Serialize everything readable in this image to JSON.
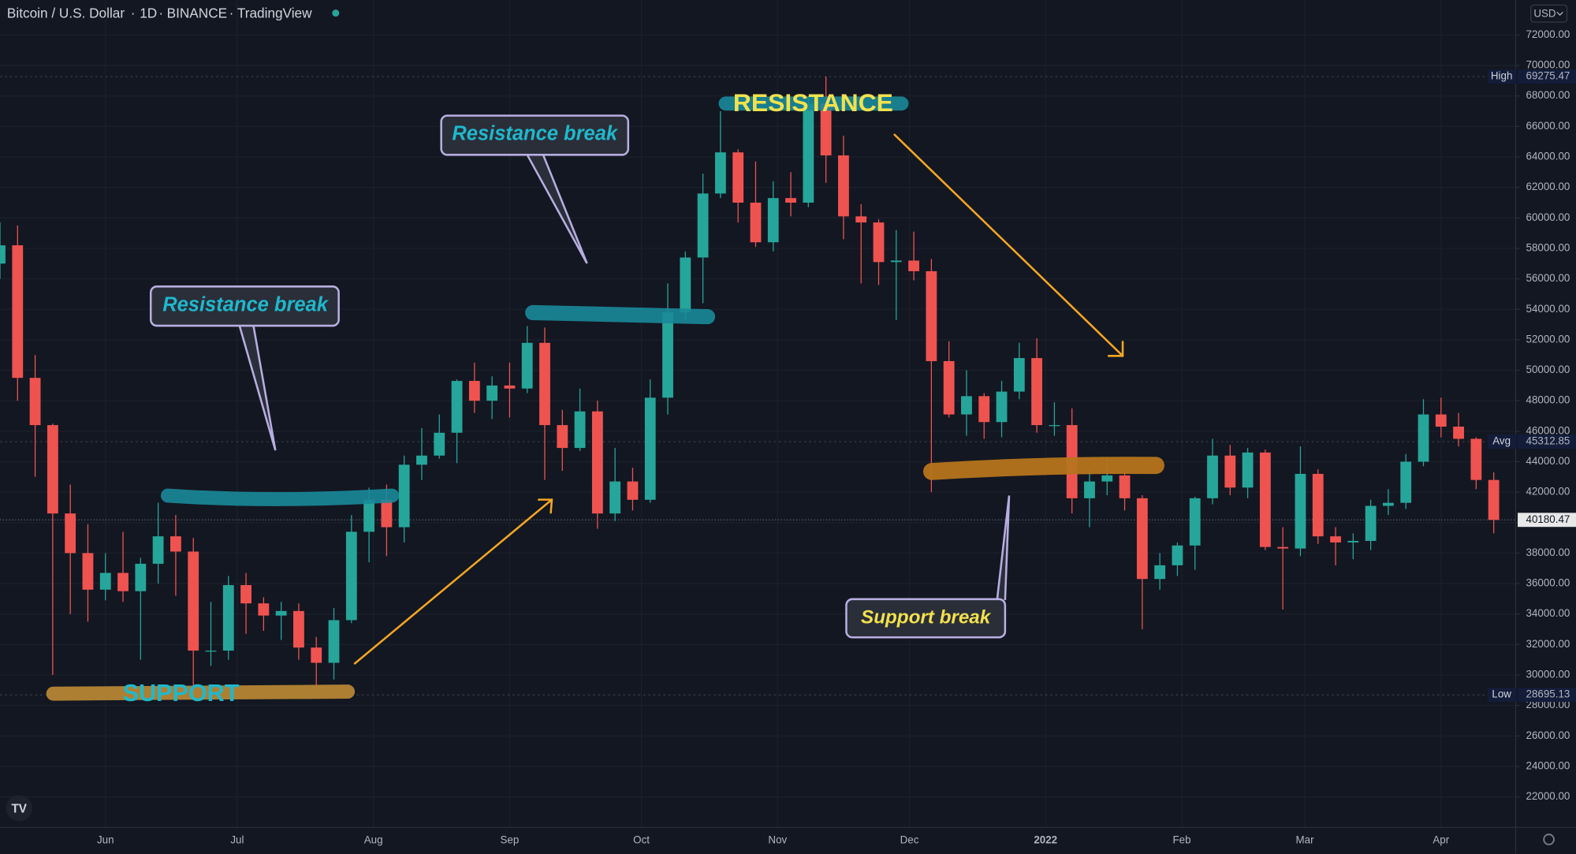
{
  "chart_data": {
    "type": "candlestick",
    "header": [
      "Bitcoin / U.S. Dollar",
      "1D",
      "BINANCE",
      "TradingView"
    ],
    "currency": "USD",
    "up_color": "#26a69a",
    "down_color": "#ef5350",
    "grid": true,
    "x": [
      0,
      4,
      8,
      12,
      16,
      20,
      24,
      28,
      32,
      36,
      40,
      44,
      48,
      52,
      56,
      60,
      64,
      68,
      72,
      76,
      80,
      84,
      88,
      92,
      96,
      100,
      104,
      108,
      112,
      116,
      120,
      124,
      128,
      132,
      136,
      140,
      144,
      148,
      152,
      156,
      160,
      164,
      168,
      172,
      176,
      180,
      184,
      188,
      192,
      196,
      200,
      204,
      208,
      212,
      216,
      220,
      224,
      228,
      232,
      236,
      240,
      244,
      248,
      252,
      256,
      260,
      264,
      268,
      272,
      276,
      280,
      284,
      288,
      292,
      296,
      300,
      304,
      308,
      312,
      316,
      320,
      324,
      328,
      332,
      336,
      340
    ],
    "open": [
      57000,
      58200,
      49500,
      46400,
      40600,
      38000,
      35600,
      36700,
      35500,
      37300,
      39100,
      38100,
      31600,
      31600,
      35900,
      34700,
      33900,
      34200,
      31800,
      30800,
      33600,
      39400,
      41500,
      39700,
      43800,
      44400,
      45900,
      49300,
      48000,
      49000,
      48800,
      51800,
      46400,
      44900,
      47300,
      40600,
      42700,
      41500,
      48200,
      53800,
      57400,
      61600,
      64300,
      61000,
      58400,
      61300,
      61000,
      67500,
      64100,
      60100,
      59700,
      57100,
      57200,
      56500,
      50600,
      47100,
      48300,
      46600,
      48600,
      50800,
      46400,
      46400,
      41600,
      42700,
      43100,
      41600,
      36300,
      37200,
      38500,
      41600,
      44400,
      42300,
      44600,
      38400,
      38300,
      43200,
      39100,
      38700,
      38800,
      41100,
      41300,
      44000,
      47100,
      46300,
      45500,
      42800
    ],
    "high": [
      59700,
      59500,
      51000,
      46500,
      42500,
      39900,
      38000,
      39400,
      37700,
      41300,
      40500,
      39000,
      34800,
      36500,
      36700,
      35100,
      34800,
      34700,
      32500,
      34400,
      40500,
      42300,
      42500,
      44400,
      46200,
      47100,
      49400,
      50500,
      49600,
      50500,
      52900,
      52800,
      47400,
      48800,
      48000,
      44900,
      43600,
      49400,
      55700,
      57800,
      62900,
      67000,
      64500,
      63700,
      62400,
      63000,
      68000,
      69275,
      65400,
      60900,
      59900,
      59200,
      59100,
      57300,
      51900,
      50000,
      48500,
      49300,
      51800,
      52100,
      47900,
      47500,
      43500,
      44300,
      43400,
      41800,
      38000,
      38700,
      41700,
      45500,
      45100,
      44900,
      44800,
      39700,
      45000,
      43500,
      39700,
      39300,
      41500,
      42200,
      44500,
      48100,
      48200,
      47200,
      45600,
      43300
    ],
    "low": [
      56000,
      48000,
      43000,
      30000,
      34000,
      33500,
      34900,
      34800,
      31000,
      36000,
      35200,
      28700,
      30600,
      31000,
      32700,
      32900,
      32300,
      31000,
      29300,
      29700,
      33400,
      37400,
      37800,
      38700,
      42800,
      44200,
      43900,
      47200,
      46800,
      46900,
      48500,
      42800,
      43400,
      44700,
      39600,
      40100,
      40800,
      41300,
      47100,
      53300,
      54400,
      61300,
      59700,
      58100,
      57800,
      60100,
      60700,
      62300,
      58600,
      55700,
      55600,
      53300,
      55900,
      42000,
      46900,
      45700,
      45500,
      45600,
      48100,
      45900,
      45700,
      40600,
      39700,
      41800,
      40800,
      33000,
      35600,
      36500,
      36900,
      41200,
      41800,
      41600,
      38200,
      34300,
      37800,
      38600,
      37200,
      37600,
      38200,
      40500,
      40900,
      43700,
      45600,
      45000,
      42200,
      39300
    ],
    "close": [
      58200,
      49500,
      46400,
      40600,
      38000,
      35600,
      36700,
      35500,
      37300,
      39100,
      38100,
      31600,
      31600,
      35900,
      34700,
      33900,
      34200,
      31800,
      30800,
      33600,
      39400,
      41500,
      39700,
      43800,
      44400,
      45900,
      49300,
      48000,
      49000,
      48800,
      51800,
      46400,
      44900,
      47300,
      40600,
      42700,
      41500,
      48200,
      53800,
      57400,
      61600,
      64300,
      61000,
      58400,
      61300,
      61000,
      67500,
      64100,
      60100,
      59700,
      57100,
      57200,
      56500,
      50600,
      47100,
      48300,
      46600,
      48600,
      50800,
      46400,
      46400,
      41600,
      42700,
      43100,
      41600,
      36300,
      37200,
      38500,
      41600,
      44400,
      42300,
      44600,
      38400,
      38300,
      43200,
      39100,
      38700,
      38800,
      41100,
      41300,
      44000,
      47100,
      46300,
      45500,
      42800,
      40180.47
    ],
    "xlim": [
      0,
      345
    ],
    "xticks": [
      {
        "value": 24,
        "label": "Jun"
      },
      {
        "value": 54,
        "label": "Jul"
      },
      {
        "value": 85,
        "label": "Aug"
      },
      {
        "value": 116,
        "label": "Sep"
      },
      {
        "value": 146,
        "label": "Oct"
      },
      {
        "value": 177,
        "label": "Nov"
      },
      {
        "value": 207,
        "label": "Dec"
      },
      {
        "value": 238,
        "label": "2022"
      },
      {
        "value": 269,
        "label": "Feb"
      },
      {
        "value": 297,
        "label": "Mar"
      },
      {
        "value": 328,
        "label": "Apr"
      }
    ],
    "ylim": [
      20000,
      74300
    ],
    "yticks": [
      {
        "value": 22000,
        "label": "22000.00"
      },
      {
        "value": 24000,
        "label": "24000.00"
      },
      {
        "value": 26000,
        "label": "26000.00"
      },
      {
        "value": 28000,
        "label": "28000.00"
      },
      {
        "value": 30000,
        "label": "30000.00"
      },
      {
        "value": 32000,
        "label": "32000.00"
      },
      {
        "value": 34000,
        "label": "34000.00"
      },
      {
        "value": 36000,
        "label": "36000.00"
      },
      {
        "value": 38000,
        "label": "38000.00"
      },
      {
        "value": 40000,
        "label": "40000.00"
      },
      {
        "value": 42000,
        "label": "42000.00"
      },
      {
        "value": 44000,
        "label": "44000.00"
      },
      {
        "value": 46000,
        "label": "46000.00"
      },
      {
        "value": 48000,
        "label": "48000.00"
      },
      {
        "value": 50000,
        "label": "50000.00"
      },
      {
        "value": 52000,
        "label": "52000.00"
      },
      {
        "value": 54000,
        "label": "54000.00"
      },
      {
        "value": 56000,
        "label": "56000.00"
      },
      {
        "value": 58000,
        "label": "58000.00"
      },
      {
        "value": 60000,
        "label": "60000.00"
      },
      {
        "value": 62000,
        "label": "62000.00"
      },
      {
        "value": 64000,
        "label": "64000.00"
      },
      {
        "value": 66000,
        "label": "66000.00"
      },
      {
        "value": 68000,
        "label": "68000.00"
      },
      {
        "value": 70000,
        "label": "70000.00"
      },
      {
        "value": 72000,
        "label": "72000.00"
      }
    ],
    "price_lines": [
      {
        "label": "High",
        "value": 69275.47
      },
      {
        "label": "Avg",
        "value": 45312.85
      },
      {
        "label": null,
        "value": 40180.47
      },
      {
        "label": "Low",
        "value": 28695.13
      }
    ],
    "annotations": {
      "resistance": "RESISTANCE",
      "support": "SUPPORT",
      "callout_1": "Resistance break",
      "callout_2": "Resistance break",
      "callout_3": "Support break"
    }
  }
}
